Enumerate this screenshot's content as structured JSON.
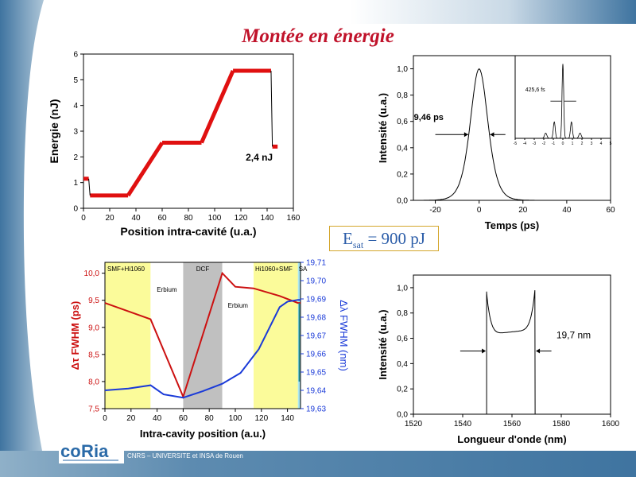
{
  "slide": {
    "title": "Montée en énergie",
    "esat": {
      "symbol": "E",
      "sub": "sat",
      "value": " = 900 pJ"
    },
    "footer": "CNRS – UNIVERSITE et INSA de Rouen",
    "logo": "coria",
    "colors": {
      "title": "#c0122a",
      "band": "#4a7ea6",
      "esat_text": "#2a5ca8"
    }
  },
  "chart_data": [
    {
      "type": "line",
      "id": "energy",
      "xlabel": "Position intra-cavité (u.a.)",
      "ylabel": "Energie (nJ)",
      "xlim": [
        0,
        160
      ],
      "ylim": [
        0,
        6
      ],
      "xticks": [
        "0",
        "20",
        "40",
        "60",
        "80",
        "100",
        "120",
        "140",
        "160"
      ],
      "yticks": [
        "0",
        "1",
        "2",
        "3",
        "4",
        "5",
        "6"
      ],
      "annotation": "2,4 nJ",
      "color": "#e01010",
      "x": [
        0,
        4,
        5,
        34,
        60,
        90,
        114,
        143,
        144,
        148
      ],
      "y": [
        1.15,
        1.15,
        0.5,
        0.5,
        2.55,
        2.55,
        5.35,
        5.35,
        2.4,
        2.4
      ]
    },
    {
      "type": "line",
      "id": "pulse",
      "xlabel": "Temps (ps)",
      "ylabel": "Intensité (u.a.)",
      "xlim": [
        -30,
        60
      ],
      "ylim": [
        0,
        1.1
      ],
      "xticks": [
        "-20",
        "0",
        "20",
        "40",
        "60"
      ],
      "yticks": [
        "0,0",
        "0,2",
        "0,4",
        "0,6",
        "0,8",
        "1,0"
      ],
      "annotation": "9,46 ps",
      "fwhm_ps": 9.46,
      "inset": {
        "xticks": [
          "-5",
          "-4",
          "-3",
          "-2",
          "-1",
          "0",
          "1",
          "2",
          "3",
          "4",
          "5"
        ],
        "annotation": "425,6 fs"
      }
    },
    {
      "type": "line",
      "id": "evolution",
      "xlabel": "Intra-cavity position (a.u.)",
      "ylabel": "Δτ FWHM (ps)",
      "y2label": "Δλ FWHM (nm)",
      "xlim": [
        0,
        150
      ],
      "ylim": [
        7.5,
        10.2
      ],
      "y2lim": [
        19.63,
        19.71
      ],
      "xticks": [
        "0",
        "20",
        "40",
        "60",
        "80",
        "100",
        "120",
        "140"
      ],
      "yticks": [
        "7,5",
        "8,0",
        "8,5",
        "9,0",
        "9,5",
        "10,0"
      ],
      "y2ticks": [
        "19,63",
        "19,64",
        "19,65",
        "19,66",
        "19,67",
        "19,68",
        "19,69",
        "19,70",
        "19,71"
      ],
      "regions": [
        {
          "label": "SMF+Hi1060",
          "from": 0,
          "to": 35,
          "color": "#fbfb9a"
        },
        {
          "label": "Erbium",
          "from": 35,
          "to": 60,
          "color": "#ffffff"
        },
        {
          "label": "DCF",
          "from": 60,
          "to": 90,
          "color": "#c0c0c0"
        },
        {
          "label": "Erbium",
          "from": 90,
          "to": 114,
          "color": "#ffffff"
        },
        {
          "label": "Hi1060+SMF",
          "from": 114,
          "to": 148,
          "color": "#fbfb9a"
        },
        {
          "label": "SA",
          "from": 148,
          "to": 150,
          "color": "#a9e6f0"
        }
      ],
      "series": [
        {
          "color": "#cc1111",
          "x": [
            0,
            35,
            60,
            90,
            100,
            114,
            134,
            148,
            150
          ],
          "y": [
            9.45,
            9.15,
            7.72,
            10.0,
            9.75,
            9.72,
            9.58,
            9.45,
            9.45
          ]
        },
        {
          "color": "#1a3ad8",
          "x": [
            0,
            18,
            35,
            45,
            60,
            75,
            90,
            104,
            118,
            134,
            140,
            148,
            150
          ],
          "y": [
            19.64,
            19.641,
            19.6428,
            19.6378,
            19.636,
            19.6395,
            19.6436,
            19.6495,
            19.6625,
            19.6855,
            19.6885,
            19.6895,
            19.6895
          ]
        }
      ]
    },
    {
      "type": "line",
      "id": "spectrum",
      "xlabel": "Longueur d'onde (nm)",
      "ylabel": "Intensité (u.a.)",
      "xlim": [
        1520,
        1600
      ],
      "ylim": [
        0,
        1.1
      ],
      "xticks": [
        "1520",
        "1540",
        "1560",
        "1580",
        "1600"
      ],
      "yticks": [
        "0,0",
        "0,2",
        "0,4",
        "0,6",
        "0,8",
        "1,0"
      ],
      "annotation": "19,7 nm",
      "edges_nm": [
        1549.7,
        1569.4
      ]
    }
  ]
}
